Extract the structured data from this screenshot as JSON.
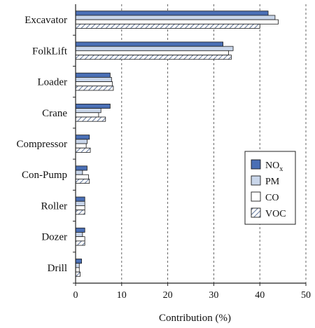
{
  "chart_data": {
    "type": "bar",
    "orientation": "horizontal",
    "categories": [
      "Excavator",
      "FolkLift",
      "Loader",
      "Crane",
      "Compressor",
      "Con-Pump",
      "Roller",
      "Dozer",
      "Drill"
    ],
    "series": [
      {
        "name": "NOx",
        "label_main": "NO",
        "label_sub": "x",
        "color": "#4a6fb5",
        "pattern": "solid",
        "values": [
          41.8,
          32.0,
          7.5,
          7.5,
          3.0,
          2.5,
          2.0,
          2.0,
          1.3
        ]
      },
      {
        "name": "PM",
        "label_main": "PM",
        "label_sub": "",
        "color": "#c9d6ea",
        "pattern": "solid",
        "values": [
          43.3,
          34.2,
          7.8,
          5.5,
          2.5,
          1.5,
          2.0,
          1.5,
          0.8
        ]
      },
      {
        "name": "CO",
        "label_main": "CO",
        "label_sub": "",
        "color": "#ffffff",
        "pattern": "solid",
        "values": [
          44.0,
          33.2,
          8.0,
          5.0,
          2.3,
          2.8,
          2.0,
          2.0,
          0.8
        ]
      },
      {
        "name": "VOC",
        "label_main": "VOC",
        "label_sub": "",
        "color": "#b8c6dc",
        "pattern": "hatch",
        "values": [
          40.0,
          33.8,
          8.2,
          6.5,
          3.2,
          3.0,
          2.0,
          2.0,
          1.0
        ]
      }
    ],
    "xlabel": "Contribution (%)",
    "xlim": [
      0,
      50
    ],
    "xticks": [
      "0",
      "10",
      "20",
      "30",
      "40",
      "50"
    ],
    "grid": "vertical dashed",
    "legend_position": "right"
  }
}
